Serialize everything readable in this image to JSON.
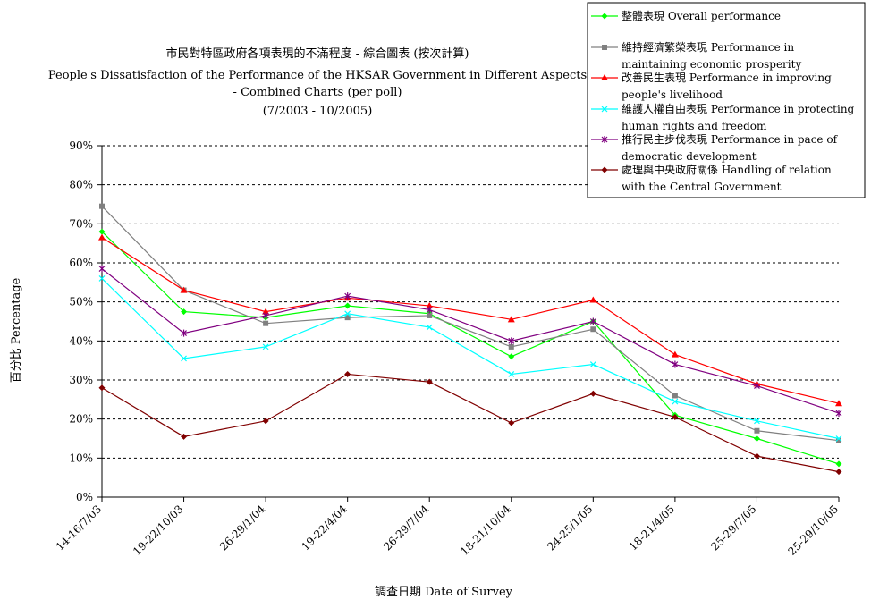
{
  "chart_data": {
    "type": "line",
    "title": [
      "市民對特區政府各項表現的不滿程度  -  綜合圖表 (按次計算)",
      "People's Dissatisfaction of the Performance of the HKSAR Government in Different Aspects",
      "- Combined Charts  (per poll)",
      "(7/2003 - 10/2005)"
    ],
    "xlabel": "調查日期 Date of Survey",
    "ylabel": "百分比 Percentage",
    "ylim": [
      0,
      90
    ],
    "yticks": [
      "0%",
      "10%",
      "20%",
      "30%",
      "40%",
      "50%",
      "60%",
      "70%",
      "80%",
      "90%"
    ],
    "categories": [
      "14-16/7/03",
      "19-22/10/03",
      "26-29/1/04",
      "19-22/4/04",
      "26-29/7/04",
      "18-21/10/04",
      "24-25/1/05",
      "18-21/4/05",
      "25-29/7/05",
      "25-29/10/05"
    ],
    "grid": "horizontal dashed",
    "legend_position": "top-right",
    "series": [
      {
        "name": [
          "整體表現 Overall performance"
        ],
        "color": "#00ff00",
        "marker": "diamond",
        "values": [
          68,
          47.5,
          46,
          49,
          47,
          36,
          45,
          21,
          15,
          8.5
        ]
      },
      {
        "name": [
          "維持經濟繁榮表現 Performance in",
          "maintaining economic prosperity"
        ],
        "color": "#808080",
        "marker": "square",
        "values": [
          74.5,
          53,
          44.5,
          46,
          46.5,
          38.5,
          43,
          26,
          17,
          14.5
        ]
      },
      {
        "name": [
          "改善民生表現 Performance in improving",
          "people's livelihood"
        ],
        "color": "#ff0000",
        "marker": "triangle",
        "values": [
          66.5,
          53,
          47.5,
          51,
          49,
          45.5,
          50.5,
          36.5,
          29,
          24
        ]
      },
      {
        "name": [
          "維護人權自由表現 Performance in protecting",
          "human rights and freedom"
        ],
        "color": "#00ffff",
        "marker": "x",
        "values": [
          56,
          35.5,
          38.5,
          47,
          43.5,
          31.5,
          34,
          24.5,
          19.5,
          15
        ]
      },
      {
        "name": [
          "推行民主步伐表現 Performance in pace of",
          "democratic development"
        ],
        "color": "#800080",
        "marker": "star",
        "values": [
          58.5,
          42,
          46.5,
          51.5,
          48,
          40,
          45,
          34,
          28.5,
          21.5
        ]
      },
      {
        "name": [
          "處理與中央政府關係 Handling of relation",
          "with the Central Government"
        ],
        "color": "#800000",
        "marker": "diamond",
        "values": [
          28,
          15.5,
          19.5,
          31.5,
          29.5,
          19,
          26.5,
          20.5,
          10.5,
          6.5
        ]
      }
    ]
  }
}
